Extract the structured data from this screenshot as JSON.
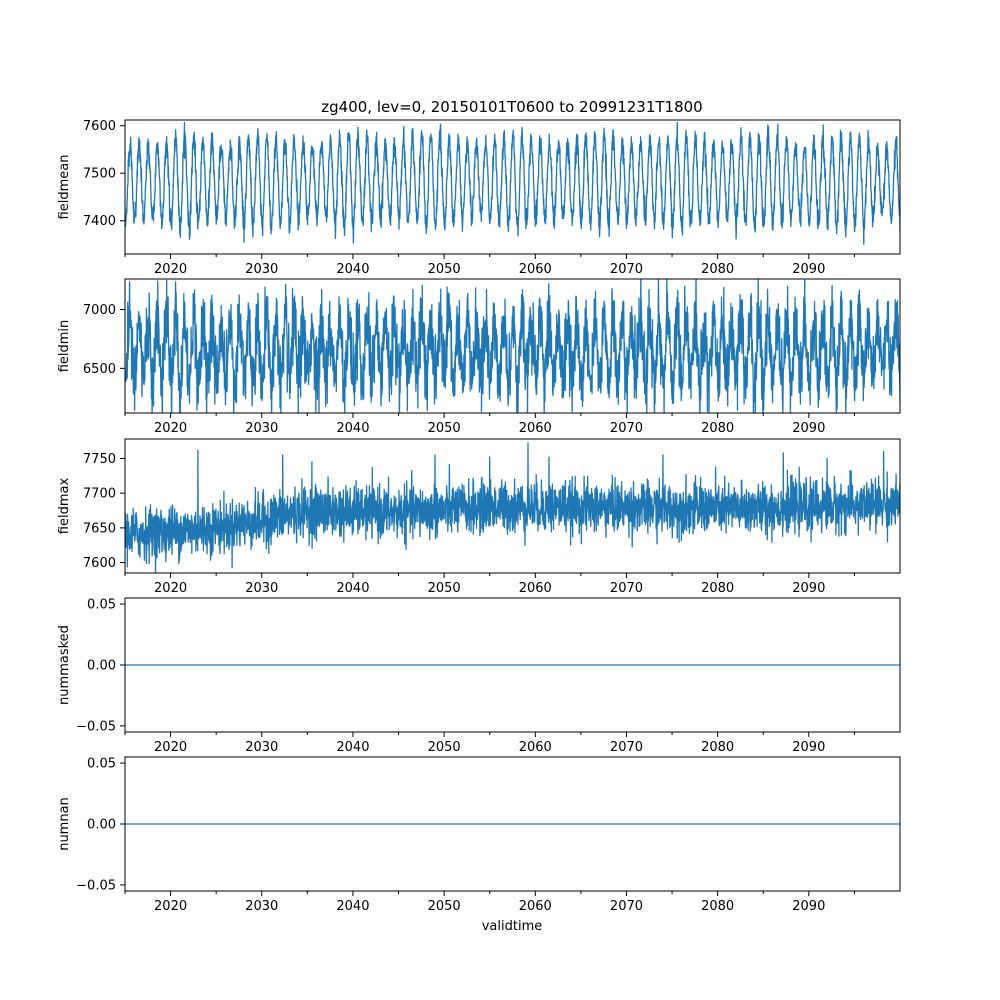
{
  "figure": {
    "title": "zg400, lev=0, 20150101T0600 to 20991231T1800",
    "xlabel": "validtime",
    "line_color": "#1f77b4"
  },
  "chart_data": [
    {
      "type": "line",
      "name": "fieldmean",
      "ylabel": "fieldmean",
      "xlim": [
        2015.0,
        2100.0
      ],
      "ylim": [
        7330,
        7612
      ],
      "yticks": [
        7400,
        7500,
        7600
      ],
      "ytick_labels": [
        "7400",
        "7500",
        "7600"
      ],
      "xticks": [
        2020,
        2030,
        2040,
        2050,
        2060,
        2070,
        2080,
        2090
      ],
      "xtick_labels": [
        "2020",
        "2030",
        "2040",
        "2050",
        "2060",
        "2070",
        "2080",
        "2090"
      ],
      "x_range": [
        2015.0,
        2100.0
      ],
      "pattern": "seasonal",
      "seasonal_center": 7480,
      "seasonal_amplitude": 85,
      "noise": 12,
      "drift": 5
    },
    {
      "type": "line",
      "name": "fieldmin",
      "ylabel": "fieldmin",
      "xlim": [
        2015.0,
        2100.0
      ],
      "ylim": [
        6120,
        7260
      ],
      "yticks": [
        6500,
        7000
      ],
      "ytick_labels": [
        "6500",
        "7000"
      ],
      "xticks": [
        2020,
        2030,
        2040,
        2050,
        2060,
        2070,
        2080,
        2090
      ],
      "xtick_labels": [
        "2020",
        "2030",
        "2040",
        "2050",
        "2060",
        "2070",
        "2080",
        "2090"
      ],
      "x_range": [
        2015.0,
        2100.0
      ],
      "pattern": "seasonal",
      "seasonal_center": 6650,
      "seasonal_amplitude": 260,
      "noise": 150,
      "drift": 0
    },
    {
      "type": "line",
      "name": "fieldmax",
      "ylabel": "fieldmax",
      "xlim": [
        2015.0,
        2100.0
      ],
      "ylim": [
        7585,
        7778
      ],
      "yticks": [
        7600,
        7650,
        7700,
        7750
      ],
      "ytick_labels": [
        "7600",
        "7650",
        "7700",
        "7750"
      ],
      "xticks": [
        2020,
        2030,
        2040,
        2050,
        2060,
        2070,
        2080,
        2090
      ],
      "xtick_labels": [
        "2020",
        "2030",
        "2040",
        "2050",
        "2060",
        "2070",
        "2080",
        "2090"
      ],
      "x_range": [
        2015.0,
        2100.0
      ],
      "pattern": "noisy-trend",
      "trend": [
        [
          2015,
          7640
        ],
        [
          2025,
          7650
        ],
        [
          2030,
          7660
        ],
        [
          2035,
          7675
        ],
        [
          2045,
          7672
        ],
        [
          2055,
          7680
        ],
        [
          2065,
          7680
        ],
        [
          2075,
          7678
        ],
        [
          2085,
          7678
        ],
        [
          2100,
          7685
        ]
      ],
      "noise": 18,
      "spikes": [
        [
          2023.0,
          7762
        ],
        [
          2032.3,
          7755
        ],
        [
          2035.5,
          7745
        ],
        [
          2049.0,
          7755
        ],
        [
          2055.0,
          7752
        ],
        [
          2059.2,
          7772
        ],
        [
          2061.5,
          7752
        ],
        [
          2074.0,
          7755
        ],
        [
          2087.2,
          7758
        ],
        [
          2092.0,
          7750
        ],
        [
          2098.2,
          7760
        ]
      ]
    },
    {
      "type": "line",
      "name": "nummasked",
      "ylabel": "nummasked",
      "xlim": [
        2015.0,
        2100.0
      ],
      "ylim": [
        -0.055,
        0.055
      ],
      "yticks": [
        -0.05,
        0.0,
        0.05
      ],
      "ytick_labels": [
        "−0.05",
        "0.00",
        "0.05"
      ],
      "xticks": [
        2020,
        2030,
        2040,
        2050,
        2060,
        2070,
        2080,
        2090
      ],
      "xtick_labels": [
        "2020",
        "2030",
        "2040",
        "2050",
        "2060",
        "2070",
        "2080",
        "2090"
      ],
      "x_range": [
        2015.0,
        2100.0
      ],
      "pattern": "constant",
      "value": 0.0
    },
    {
      "type": "line",
      "name": "numnan",
      "ylabel": "numnan",
      "xlim": [
        2015.0,
        2100.0
      ],
      "ylim": [
        -0.055,
        0.055
      ],
      "yticks": [
        -0.05,
        0.0,
        0.05
      ],
      "ytick_labels": [
        "−0.05",
        "0.00",
        "0.05"
      ],
      "xticks": [
        2020,
        2030,
        2040,
        2050,
        2060,
        2070,
        2080,
        2090
      ],
      "xtick_labels": [
        "2020",
        "2030",
        "2040",
        "2050",
        "2060",
        "2070",
        "2080",
        "2090"
      ],
      "x_range": [
        2015.0,
        2100.0
      ],
      "pattern": "constant",
      "value": 0.0
    }
  ]
}
